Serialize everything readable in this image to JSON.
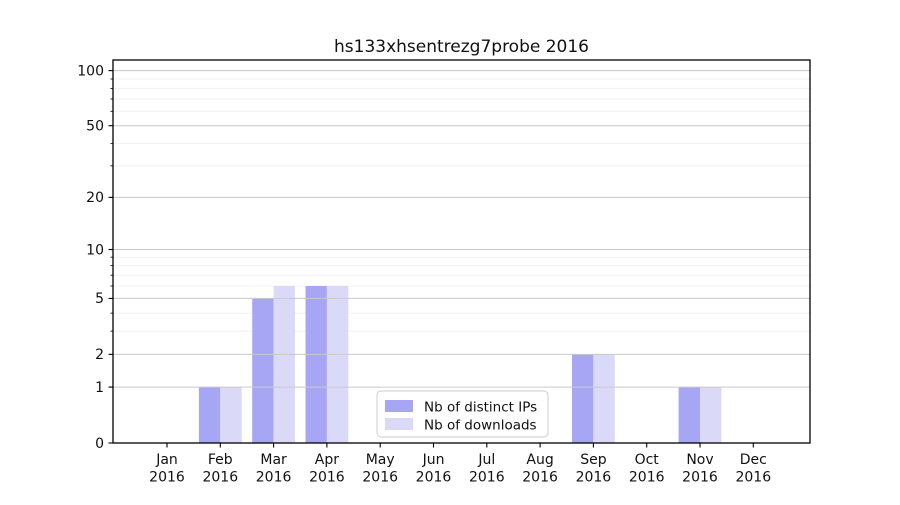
{
  "chart_data": {
    "type": "bar",
    "title": "hs133xhsentrezg7probe 2016",
    "categories": [
      "Jan",
      "Feb",
      "Mar",
      "Apr",
      "May",
      "Jun",
      "Jul",
      "Aug",
      "Sep",
      "Oct",
      "Nov",
      "Dec"
    ],
    "category_year": "2016",
    "series": [
      {
        "name": "Nb of distinct IPs",
        "color": "#a6a6f4",
        "values": [
          0,
          1,
          5,
          6,
          0,
          0,
          0,
          0,
          2,
          0,
          1,
          0
        ]
      },
      {
        "name": "Nb of downloads",
        "color": "#dadaf8",
        "values": [
          0,
          1,
          6,
          6,
          0,
          0,
          0,
          0,
          2,
          0,
          1,
          0
        ]
      }
    ],
    "y_axis": {
      "scale": "log1p",
      "ticks": [
        0,
        1,
        2,
        5,
        10,
        20,
        50,
        100
      ],
      "minor_gridlines": [
        3,
        4,
        6,
        7,
        8,
        9,
        30,
        40,
        60,
        70,
        80,
        90
      ],
      "ylim": [
        0,
        115
      ]
    },
    "x_axis": {
      "ylabel": "",
      "xlabel": ""
    },
    "legend": {
      "position": "lower center"
    },
    "grid": true
  },
  "colors": {
    "background": "#ffffff",
    "spine": "#000000",
    "grid_major": "#c9c9c9",
    "grid_minor": "#f0f0f0",
    "tick": "#000000",
    "text": "#111111"
  }
}
